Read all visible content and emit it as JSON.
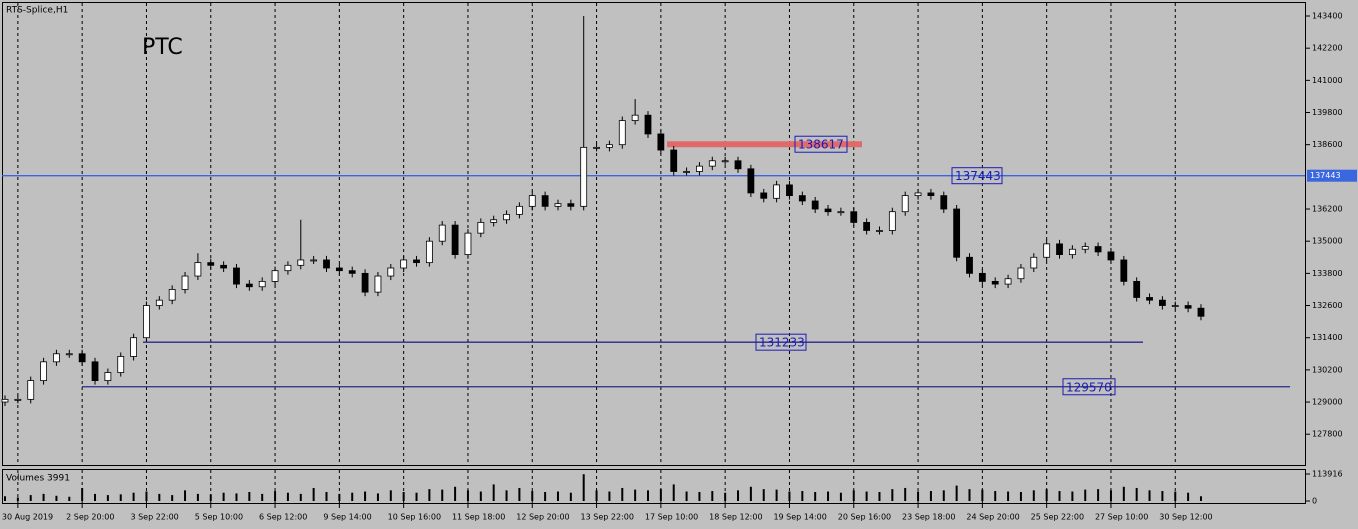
{
  "chart_data": {
    "type": "candlestick",
    "title": "RTS-Splice,H1",
    "symbol_label": "PTC",
    "volume_title": "Volumes 3991",
    "categories": [
      null,
      "30 Aug 2019",
      null,
      null,
      null,
      null,
      "2 Sep 20:00",
      null,
      null,
      null,
      null,
      "3 Sep 22:00",
      null,
      null,
      null,
      null,
      "5 Sep 10:00",
      null,
      null,
      null,
      null,
      "6 Sep 12:00",
      null,
      null,
      null,
      null,
      "9 Sep 14:00",
      null,
      null,
      null,
      null,
      "10 Sep 16:00",
      null,
      null,
      null,
      null,
      "11 Sep 18:00",
      null,
      null,
      null,
      null,
      "12 Sep 20:00",
      null,
      null,
      null,
      null,
      "13 Sep 22:00",
      null,
      null,
      null,
      null,
      "17 Sep 10:00",
      null,
      null,
      null,
      null,
      "18 Sep 12:00",
      null,
      null,
      null,
      null,
      "19 Sep 14:00",
      null,
      null,
      null,
      null,
      "20 Sep 16:00",
      null,
      null,
      null,
      null,
      "23 Sep 18:00",
      null,
      null,
      null,
      null,
      "24 Sep 20:00",
      null,
      null,
      null,
      null,
      "25 Sep 22:00",
      null,
      null,
      null,
      null,
      "27 Sep 10:00",
      null,
      null,
      null,
      null,
      "30 Sep 12:00",
      null,
      null
    ],
    "open": [
      129000,
      129100,
      129100,
      129800,
      130500,
      130800,
      130800,
      130500,
      129800,
      130100,
      130700,
      131400,
      132600,
      132800,
      133200,
      133700,
      134200,
      134100,
      134000,
      133400,
      133300,
      133500,
      133900,
      134100,
      134300,
      134300,
      134000,
      133900,
      133800,
      133100,
      133700,
      134000,
      134300,
      134200,
      135000,
      135600,
      134500,
      135300,
      135700,
      135800,
      136000,
      136300,
      136700,
      136300,
      136400,
      136300,
      138500,
      138500,
      138600,
      139500,
      139700,
      139000,
      138400,
      137600,
      137600,
      137800,
      138000,
      138000,
      137700,
      136800,
      136600,
      137100,
      136700,
      136500,
      136200,
      136100,
      136100,
      135700,
      135400,
      135400,
      136100,
      136700,
      136800,
      136700,
      136200,
      134400,
      133800,
      133500,
      133400,
      133600,
      134000,
      134400,
      134900,
      134500,
      134700,
      134800,
      134600,
      134300,
      133500,
      132900,
      132800,
      132600,
      132600,
      132500
    ],
    "high": [
      129250,
      129250,
      129950,
      130650,
      130950,
      130950,
      130950,
      130650,
      130250,
      130850,
      131550,
      132750,
      132950,
      133350,
      133850,
      134550,
      134350,
      134250,
      134150,
      133550,
      133650,
      134050,
      134250,
      135800,
      134450,
      134450,
      134150,
      134050,
      133950,
      133850,
      134150,
      134450,
      134450,
      135150,
      135750,
      135750,
      135450,
      135850,
      135950,
      136150,
      136450,
      136850,
      136850,
      136550,
      136550,
      143400,
      138650,
      138750,
      139650,
      140300,
      139850,
      139150,
      138550,
      137750,
      137950,
      138150,
      138150,
      138150,
      137850,
      136950,
      137250,
      137250,
      136850,
      136650,
      136350,
      136250,
      136250,
      135850,
      135550,
      136250,
      136850,
      136950,
      136950,
      136850,
      136350,
      134550,
      133950,
      133650,
      133750,
      134150,
      134550,
      135050,
      135050,
      134850,
      134950,
      134950,
      134750,
      134450,
      133650,
      133050,
      132950,
      132750,
      132750,
      132650
    ],
    "low": [
      128850,
      128950,
      128950,
      129650,
      130350,
      130650,
      130350,
      129650,
      129650,
      129950,
      130550,
      131250,
      132450,
      132650,
      133050,
      133550,
      133950,
      133850,
      133250,
      133150,
      133150,
      133350,
      133750,
      133950,
      134150,
      133850,
      133750,
      133650,
      132950,
      132950,
      133550,
      133850,
      134050,
      134050,
      134850,
      134350,
      134350,
      135150,
      135550,
      135650,
      135850,
      136150,
      136150,
      136150,
      136150,
      136150,
      138350,
      138350,
      138450,
      139350,
      138850,
      138250,
      137450,
      137450,
      137450,
      137650,
      137850,
      137550,
      136650,
      136450,
      136450,
      136550,
      136350,
      136050,
      135950,
      135950,
      135550,
      135250,
      135250,
      135250,
      135950,
      136550,
      136550,
      136050,
      134250,
      133650,
      133350,
      133250,
      133250,
      133450,
      133850,
      134250,
      134350,
      134350,
      134550,
      134450,
      134150,
      133350,
      132750,
      132650,
      132450,
      132450,
      132350,
      132050
    ],
    "close": [
      129100,
      129100,
      129800,
      130500,
      130800,
      130800,
      130500,
      129800,
      130100,
      130700,
      131400,
      132600,
      132800,
      133200,
      133700,
      134200,
      134100,
      134000,
      133400,
      133300,
      133500,
      133900,
      134100,
      134300,
      134300,
      134000,
      133900,
      133800,
      133100,
      133700,
      134000,
      134300,
      134200,
      135000,
      135600,
      134500,
      135300,
      135700,
      135800,
      136000,
      136300,
      136700,
      136300,
      136400,
      136300,
      138500,
      138500,
      138600,
      139500,
      139700,
      139000,
      138400,
      137600,
      137600,
      137800,
      138000,
      138000,
      137700,
      136800,
      136600,
      137100,
      136700,
      136500,
      136200,
      136100,
      136100,
      135700,
      135400,
      135400,
      136100,
      136700,
      136800,
      136700,
      136200,
      134400,
      133800,
      133500,
      133400,
      133600,
      134000,
      134400,
      134900,
      134500,
      134700,
      134800,
      134600,
      134300,
      133500,
      132900,
      132800,
      132600,
      132600,
      132500,
      132200
    ],
    "volumes": [
      20000,
      15000,
      25000,
      30000,
      22000,
      18000,
      55000,
      30000,
      25000,
      28000,
      35000,
      40000,
      30000,
      25000,
      45000,
      30000,
      28000,
      35000,
      32000,
      38000,
      30000,
      42000,
      35000,
      30000,
      55000,
      38000,
      30000,
      35000,
      40000,
      32000,
      45000,
      38000,
      35000,
      50000,
      48000,
      60000,
      45000,
      40000,
      70000,
      45000,
      55000,
      42000,
      38000,
      40000,
      35000,
      113000,
      45000,
      40000,
      55000,
      48000,
      45000,
      50000,
      70000,
      40000,
      38000,
      42000,
      35000,
      45000,
      60000,
      50000,
      48000,
      40000,
      42000,
      38000,
      40000,
      35000,
      45000,
      40000,
      38000,
      50000,
      55000,
      40000,
      42000,
      45000,
      65000,
      50000,
      48000,
      42000,
      40000,
      38000,
      45000,
      50000,
      42000,
      40000,
      48000,
      50000,
      45000,
      60000,
      55000,
      45000,
      42000,
      40000,
      35000,
      20000
    ],
    "ylim": [
      126614,
      143997
    ],
    "yticks": [
      143400,
      142200,
      141000,
      139800,
      138600,
      136200,
      135000,
      133800,
      132600,
      131400,
      130200,
      129000,
      127800
    ],
    "volume_ylim": [
      0,
      113916
    ],
    "volume_yticks": [
      113916,
      0
    ],
    "levels": [
      {
        "value": 138617,
        "color": "#e06a6a"
      },
      {
        "value": 137443,
        "color": "#3a66e0"
      },
      {
        "value": 131233,
        "color": "#28288c"
      },
      {
        "value": 129570,
        "color": "#28288c"
      }
    ],
    "grid": true,
    "background": "#c0c0c0",
    "up_color": "#ffffff",
    "down_color": "#000000",
    "volume_color": "#000000"
  }
}
